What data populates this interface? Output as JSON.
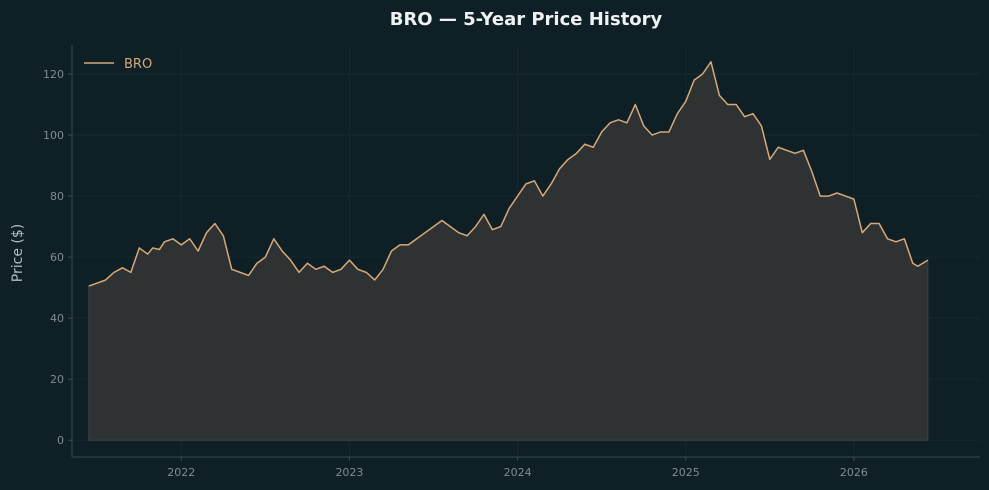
{
  "colors": {
    "background": "#0f1f26",
    "line": "#d7a878",
    "fill": "#2e3233",
    "grid": "#17292f",
    "axis": "#3a4a50"
  },
  "chart_data": {
    "type": "area",
    "title": "BRO — 5-Year Price History",
    "xlabel": "",
    "ylabel": "Price ($)",
    "legend_position": "top-left",
    "grid": true,
    "xlim": [
      2021.35,
      2026.75
    ],
    "ylim": [
      -5.5,
      129.5
    ],
    "x_ticks": [
      2022,
      2023,
      2024,
      2025,
      2026
    ],
    "x_tick_labels": [
      "2022",
      "2023",
      "2024",
      "2025",
      "2026"
    ],
    "y_ticks": [
      0,
      20,
      40,
      60,
      80,
      100,
      120
    ],
    "y_tick_labels": [
      "0",
      "20",
      "40",
      "60",
      "80",
      "100",
      "120"
    ],
    "series": [
      {
        "name": "BRO",
        "x": [
          2021.45,
          2021.5,
          2021.55,
          2021.6,
          2021.65,
          2021.7,
          2021.75,
          2021.8,
          2021.83,
          2021.87,
          2021.9,
          2021.95,
          2022.0,
          2022.05,
          2022.1,
          2022.15,
          2022.2,
          2022.25,
          2022.3,
          2022.35,
          2022.4,
          2022.45,
          2022.5,
          2022.55,
          2022.6,
          2022.65,
          2022.7,
          2022.75,
          2022.8,
          2022.85,
          2022.9,
          2022.95,
          2023.0,
          2023.05,
          2023.1,
          2023.15,
          2023.2,
          2023.25,
          2023.3,
          2023.35,
          2023.4,
          2023.45,
          2023.5,
          2023.55,
          2023.6,
          2023.65,
          2023.7,
          2023.75,
          2023.8,
          2023.85,
          2023.9,
          2023.95,
          2024.0,
          2024.05,
          2024.1,
          2024.15,
          2024.2,
          2024.25,
          2024.3,
          2024.35,
          2024.4,
          2024.45,
          2024.5,
          2024.55,
          2024.6,
          2024.65,
          2024.7,
          2024.75,
          2024.8,
          2024.85,
          2024.9,
          2024.95,
          2025.0,
          2025.05,
          2025.1,
          2025.15,
          2025.2,
          2025.25,
          2025.3,
          2025.35,
          2025.4,
          2025.45,
          2025.5,
          2025.55,
          2025.6,
          2025.65,
          2025.7,
          2025.75,
          2025.8,
          2025.85,
          2025.9,
          2025.95,
          2026.0,
          2026.05,
          2026.1,
          2026.15,
          2026.2,
          2026.25,
          2026.3,
          2026.35,
          2026.38,
          2026.41,
          2026.44
        ],
        "values": [
          50.5,
          51.5,
          52.5,
          55,
          56.5,
          55,
          63,
          61,
          63,
          62.5,
          65,
          66,
          64,
          66,
          62,
          68,
          71,
          67,
          56,
          55,
          54,
          58,
          60,
          66,
          62,
          59,
          55,
          58,
          56,
          57,
          55,
          56,
          59,
          56,
          55,
          52.5,
          56,
          62,
          64,
          64,
          66,
          68,
          70,
          72,
          70,
          68,
          67,
          70,
          74,
          69,
          70,
          76,
          80,
          84,
          85,
          80,
          84,
          89,
          92,
          94,
          97,
          96,
          101,
          104,
          105,
          104,
          110,
          103,
          100,
          101,
          101,
          107,
          111,
          118,
          120,
          124,
          113,
          110,
          110,
          106,
          107,
          103,
          92,
          96,
          95,
          94,
          95,
          88,
          80,
          80,
          81,
          80,
          79,
          68,
          71,
          71,
          66,
          65,
          66,
          58,
          57,
          58,
          59
        ]
      }
    ]
  }
}
